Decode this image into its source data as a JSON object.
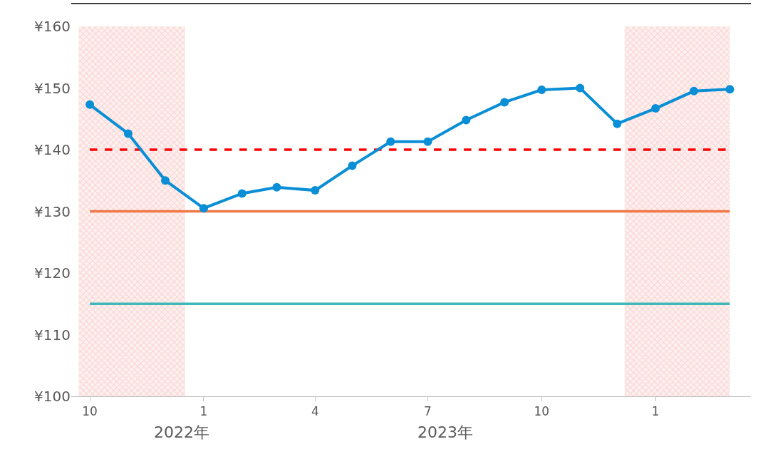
{
  "chart_data": {
    "type": "line",
    "x": [
      "2022-10",
      "2022-11",
      "2022-12",
      "2023-01",
      "2023-02",
      "2023-03",
      "2023-04",
      "2023-05",
      "2023-06",
      "2023-07",
      "2023-08",
      "2023-09",
      "2023-10",
      "2023-11",
      "2023-12",
      "2024-01",
      "2024-02",
      "2024-03"
    ],
    "series": [
      {
        "color": "#0a8ed6",
        "values": [
          147.3,
          142.6,
          135.0,
          130.5,
          132.9,
          133.9,
          133.4,
          137.4,
          141.3,
          141.3,
          144.8,
          147.7,
          149.7,
          150.0,
          144.2,
          146.7,
          149.5,
          149.8
        ]
      }
    ],
    "marker": "circle",
    "line_style": "solid",
    "xlim": [
      "2022-09-16",
      "2024-03-18"
    ],
    "xticks": [
      {
        "value": "2022-10",
        "label": "10"
      },
      {
        "value": "2023-01",
        "label": "1"
      },
      {
        "value": "2023-04",
        "label": "4"
      },
      {
        "value": "2023-07",
        "label": "7"
      },
      {
        "value": "2023-10",
        "label": "10"
      },
      {
        "value": "2024-01",
        "label": "1"
      }
    ],
    "ylim": [
      100,
      163.7
    ],
    "yticks": [
      {
        "value": 100,
        "label": "¥100"
      },
      {
        "value": 110,
        "label": "¥110"
      },
      {
        "value": 120,
        "label": "¥120"
      },
      {
        "value": 130,
        "label": "¥130"
      },
      {
        "value": 140,
        "label": "¥140"
      },
      {
        "value": 150,
        "label": "¥150"
      },
      {
        "value": 160,
        "label": "¥160"
      }
    ],
    "ref_lines": [
      {
        "axis": "y",
        "value": 140,
        "color": "#ff0000",
        "line_style": "dashed"
      },
      {
        "axis": "y",
        "value": 130,
        "color": "#f07846",
        "line_style": "solid"
      },
      {
        "axis": "y",
        "value": 115,
        "color": "#3fb8b8",
        "line_style": "solid"
      }
    ],
    "bands": [
      {
        "axis": "x",
        "from": "2022-09-22",
        "to": "2022-12-17",
        "color": "#f4b6b0"
      },
      {
        "axis": "x",
        "from": "2023-12-07",
        "to": "2024-03-01",
        "color": "#f4b6b0"
      }
    ],
    "annotations": [
      "2022年",
      "2023年"
    ]
  }
}
